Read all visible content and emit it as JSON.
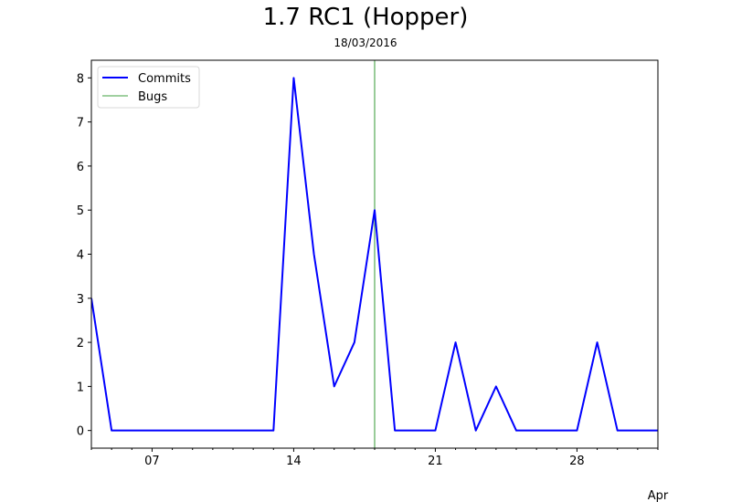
{
  "chart_data": {
    "type": "line",
    "title": "1.7 RC1 (Hopper)",
    "subtitle": "18/03/2016",
    "xlabel": "",
    "ylabel": "",
    "x_dates": [
      "2016-03-04",
      "2016-03-05",
      "2016-03-06",
      "2016-03-07",
      "2016-03-08",
      "2016-03-09",
      "2016-03-10",
      "2016-03-11",
      "2016-03-12",
      "2016-03-13",
      "2016-03-14",
      "2016-03-15",
      "2016-03-16",
      "2016-03-17",
      "2016-03-18",
      "2016-03-19",
      "2016-03-20",
      "2016-03-21",
      "2016-03-22",
      "2016-03-23",
      "2016-03-24",
      "2016-03-25",
      "2016-03-26",
      "2016-03-27",
      "2016-03-28",
      "2016-03-29",
      "2016-03-30",
      "2016-03-31",
      "2016-04-01"
    ],
    "xlim": [
      "2016-03-04",
      "2016-04-01"
    ],
    "ylim": [
      -0.4,
      8.4
    ],
    "x_tick_labels": [
      {
        "date": "2016-03-07",
        "label": "07"
      },
      {
        "date": "2016-03-14",
        "label": "14"
      },
      {
        "date": "2016-03-21",
        "label": "21"
      },
      {
        "date": "2016-03-28",
        "label": "28"
      }
    ],
    "x_secondary_label": "Apr",
    "y_ticks": [
      0,
      1,
      2,
      3,
      4,
      5,
      6,
      7,
      8
    ],
    "grid": false,
    "legend_position": "top-left",
    "series": [
      {
        "name": "Commits",
        "color": "#0000ff",
        "values": [
          3,
          0,
          0,
          0,
          0,
          0,
          0,
          0,
          0,
          0,
          8,
          4,
          1,
          2,
          5,
          0,
          0,
          0,
          2,
          0,
          1,
          0,
          0,
          0,
          0,
          2,
          0,
          0,
          0
        ]
      }
    ],
    "markers": [
      {
        "name": "Bugs",
        "type": "vline",
        "date": "2016-03-18",
        "color": "#008000"
      }
    ]
  }
}
